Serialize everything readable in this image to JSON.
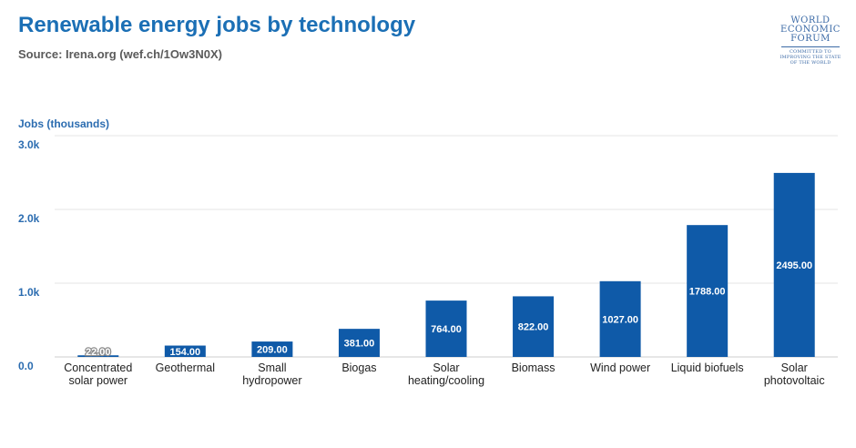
{
  "header": {
    "title": "Renewable energy jobs by technology",
    "source": "Source: Irena.org (wef.ch/1Ow3N0X)"
  },
  "logo": {
    "lines": [
      "WORLD",
      "ECONOMIC",
      "FORUM"
    ],
    "tagline": [
      "COMMITTED TO",
      "IMPROVING THE STATE",
      "OF THE WORLD"
    ]
  },
  "colors": {
    "bar": "#0f5aa8",
    "accent": "#1b6fb5",
    "grid": "#e6e6e6"
  },
  "chart_data": {
    "type": "bar",
    "title": "Renewable energy jobs by technology",
    "subtitle": "Source: Irena.org (wef.ch/1Ow3N0X)",
    "ylabel": "Jobs (thousands)",
    "ylim": [
      0,
      3000
    ],
    "yticks": [
      0,
      1000,
      2000,
      3000
    ],
    "ytick_labels": [
      "0.0",
      "1.0k",
      "2.0k",
      "3.0k"
    ],
    "grid": true,
    "categories": [
      "Concentrated solar power",
      "Geothermal",
      "Small hydropower",
      "Biogas",
      "Solar heating/cooling",
      "Biomass",
      "Wind power",
      "Liquid biofuels",
      "Solar photovoltaic"
    ],
    "category_lines": [
      [
        "Concentrated",
        "solar power"
      ],
      [
        "Geothermal"
      ],
      [
        "Small",
        "hydropower"
      ],
      [
        "Biogas"
      ],
      [
        "Solar",
        "heating/cooling"
      ],
      [
        "Biomass"
      ],
      [
        "Wind power"
      ],
      [
        "Liquid biofuels"
      ],
      [
        "Solar",
        "photovoltaic"
      ]
    ],
    "values": [
      22,
      154,
      209,
      381,
      764,
      822,
      1027,
      1788,
      2495
    ],
    "value_labels": [
      "22.00",
      "154.00",
      "209.00",
      "381.00",
      "764.00",
      "822.00",
      "1027.00",
      "1788.00",
      "2495.00"
    ]
  }
}
